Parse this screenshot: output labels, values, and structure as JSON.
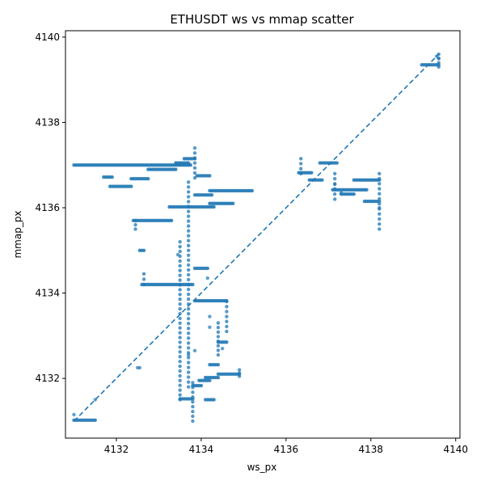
{
  "chart_data": {
    "type": "scatter",
    "title": "ETHUSDT ws vs mmap scatter",
    "xlabel": "ws_px",
    "ylabel": "mmap_px",
    "xlim": [
      4130.8,
      4140.1
    ],
    "ylim": [
      4130.6,
      4140.15
    ],
    "xticks": [
      4132,
      4134,
      4136,
      4138,
      4140
    ],
    "yticks": [
      4132,
      4134,
      4136,
      4138,
      4140
    ],
    "grid": false,
    "legend": "none",
    "colors": {
      "points": "#1f77b4",
      "reference_line": "#1f77b4"
    },
    "reference_line": {
      "style": "dashed",
      "x": [
        4131.0,
        4139.6
      ],
      "y": [
        4131.0,
        4139.6
      ]
    },
    "segments": [
      {
        "x0": 4131.0,
        "x1": 4133.75,
        "y": 4137.0
      },
      {
        "x0": 4131.7,
        "x1": 4131.9,
        "y": 4136.72
      },
      {
        "x0": 4131.85,
        "x1": 4132.35,
        "y": 4136.5
      },
      {
        "x0": 4132.35,
        "x1": 4132.75,
        "y": 4136.68
      },
      {
        "x0": 4132.75,
        "x1": 4133.4,
        "y": 4136.9
      },
      {
        "x0": 4133.4,
        "x1": 4133.7,
        "y": 4137.05
      },
      {
        "x0": 4133.6,
        "x1": 4133.85,
        "y": 4137.15
      },
      {
        "x0": 4132.4,
        "x1": 4133.3,
        "y": 4135.7
      },
      {
        "x0": 4133.25,
        "x1": 4134.3,
        "y": 4136.02
      },
      {
        "x0": 4133.85,
        "x1": 4134.25,
        "y": 4136.3
      },
      {
        "x0": 4133.9,
        "x1": 4134.2,
        "y": 4136.75
      },
      {
        "x0": 4134.2,
        "x1": 4134.75,
        "y": 4136.1
      },
      {
        "x0": 4134.2,
        "x1": 4135.2,
        "y": 4136.4
      },
      {
        "x0": 4132.55,
        "x1": 4132.65,
        "y": 4135.0
      },
      {
        "x0": 4132.6,
        "x1": 4133.8,
        "y": 4134.2
      },
      {
        "x0": 4133.85,
        "x1": 4134.15,
        "y": 4134.58
      },
      {
        "x0": 4133.85,
        "x1": 4134.6,
        "y": 4133.82
      },
      {
        "x0": 4134.4,
        "x1": 4134.6,
        "y": 4132.85
      },
      {
        "x0": 4134.2,
        "x1": 4134.4,
        "y": 4132.32
      },
      {
        "x0": 4134.4,
        "x1": 4134.9,
        "y": 4132.1
      },
      {
        "x0": 4134.1,
        "x1": 4134.4,
        "y": 4132.02
      },
      {
        "x0": 4133.95,
        "x1": 4134.2,
        "y": 4131.95
      },
      {
        "x0": 4133.8,
        "x1": 4134.0,
        "y": 4131.83
      },
      {
        "x0": 4133.5,
        "x1": 4133.8,
        "y": 4131.52
      },
      {
        "x0": 4134.1,
        "x1": 4134.3,
        "y": 4131.5
      },
      {
        "x0": 4131.0,
        "x1": 4131.5,
        "y": 4131.02
      },
      {
        "x0": 4136.3,
        "x1": 4136.6,
        "y": 4136.82
      },
      {
        "x0": 4136.55,
        "x1": 4136.85,
        "y": 4136.65
      },
      {
        "x0": 4136.8,
        "x1": 4137.2,
        "y": 4137.05
      },
      {
        "x0": 4137.1,
        "x1": 4137.9,
        "y": 4136.42
      },
      {
        "x0": 4137.3,
        "x1": 4137.6,
        "y": 4136.32
      },
      {
        "x0": 4137.6,
        "x1": 4138.2,
        "y": 4136.65
      },
      {
        "x0": 4137.85,
        "x1": 4138.2,
        "y": 4136.15
      },
      {
        "x0": 4139.2,
        "x1": 4139.6,
        "y": 4139.35
      }
    ],
    "verticals": [
      {
        "x": 4133.85,
        "y0": 4136.7,
        "y1": 4137.4
      },
      {
        "x": 4133.5,
        "y0": 4131.5,
        "y1": 4135.2
      },
      {
        "x": 4133.7,
        "y0": 4131.8,
        "y1": 4136.6
      },
      {
        "x": 4134.6,
        "y0": 4133.1,
        "y1": 4133.8
      },
      {
        "x": 4134.4,
        "y0": 4132.55,
        "y1": 4133.3
      },
      {
        "x": 4134.9,
        "y0": 4132.05,
        "y1": 4132.2
      },
      {
        "x": 4133.8,
        "y0": 4131.0,
        "y1": 4131.9
      },
      {
        "x": 4138.2,
        "y0": 4135.5,
        "y1": 4136.8
      },
      {
        "x": 4137.15,
        "y0": 4136.2,
        "y1": 4136.8
      },
      {
        "x": 4136.35,
        "y0": 4136.8,
        "y1": 4137.15
      },
      {
        "x": 4139.6,
        "y0": 4139.3,
        "y1": 4139.6
      },
      {
        "x": 4132.65,
        "y0": 4134.2,
        "y1": 4134.45
      },
      {
        "x": 4132.45,
        "y0": 4135.5,
        "y1": 4135.7
      }
    ],
    "points": [
      [
        4131.0,
        4131.15
      ],
      [
        4131.5,
        4131.5
      ],
      [
        4132.5,
        4132.25
      ],
      [
        4132.55,
        4132.25
      ],
      [
        4133.45,
        4134.9
      ],
      [
        4133.7,
        4132.55
      ],
      [
        4133.85,
        4132.65
      ],
      [
        4134.15,
        4134.35
      ],
      [
        4134.2,
        4133.45
      ],
      [
        4134.2,
        4133.2
      ],
      [
        4134.5,
        4132.7
      ],
      [
        4139.55,
        4139.55
      ],
      [
        4139.6,
        4139.5
      ],
      [
        4137.15,
        4136.55
      ],
      [
        4138.2,
        4136.0
      ],
      [
        4137.3,
        4136.35
      ]
    ]
  }
}
